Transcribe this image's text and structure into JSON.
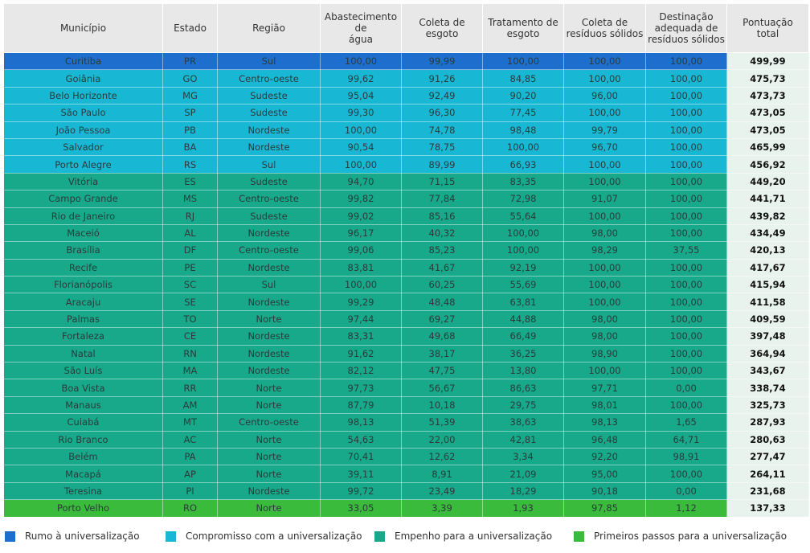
{
  "table": {
    "header": [
      "Município",
      "Estado",
      "Região",
      "Abastecimento\nde\nágua",
      "Coleta de\nesgoto",
      "Tratamento de\nesgoto",
      "Coleta de\nresíduos sólidos",
      "Destinação\nadequada de\nresíduos sólidos",
      "Pontuação\ntotal"
    ],
    "groups": [
      {
        "label": "Rumo à universalização",
        "color": "#1e6fcd",
        "rows": [
          [
            "Curitiba",
            "PR",
            "Sul",
            "100,00",
            "99,99",
            "100,00",
            "100,00",
            "100,00",
            "499,99"
          ]
        ]
      },
      {
        "label": "Compromisso com a universalização",
        "color": "#18b8d4",
        "rows": [
          [
            "Goiânia",
            "GO",
            "Centro-oeste",
            "99,62",
            "91,26",
            "84,85",
            "100,00",
            "100,00",
            "475,73"
          ],
          [
            "Belo Horizonte",
            "MG",
            "Sudeste",
            "95,04",
            "92,49",
            "90,20",
            "96,00",
            "100,00",
            "473,73"
          ],
          [
            "São Paulo",
            "SP",
            "Sudeste",
            "99,30",
            "96,30",
            "77,45",
            "100,00",
            "100,00",
            "473,05"
          ],
          [
            "João Pessoa",
            "PB",
            "Nordeste",
            "100,00",
            "74,78",
            "98,48",
            "99,79",
            "100,00",
            "473,05"
          ],
          [
            "Salvador",
            "BA",
            "Nordeste",
            "90,54",
            "78,75",
            "100,00",
            "96,70",
            "100,00",
            "465,99"
          ],
          [
            "Porto Alegre",
            "RS",
            "Sul",
            "100,00",
            "89,99",
            "66,93",
            "100,00",
            "100,00",
            "456,92"
          ]
        ]
      },
      {
        "label": "Empenho para a universalização",
        "color": "#17a98a",
        "rows": [
          [
            "Vitória",
            "ES",
            "Sudeste",
            "94,70",
            "71,15",
            "83,35",
            "100,00",
            "100,00",
            "449,20"
          ],
          [
            "Campo Grande",
            "MS",
            "Centro-oeste",
            "99,82",
            "77,84",
            "72,98",
            "91,07",
            "100,00",
            "441,71"
          ],
          [
            "Rio de Janeiro",
            "RJ",
            "Sudeste",
            "99,02",
            "85,16",
            "55,64",
            "100,00",
            "100,00",
            "439,82"
          ],
          [
            "Maceió",
            "AL",
            "Nordeste",
            "96,17",
            "40,32",
            "100,00",
            "98,00",
            "100,00",
            "434,49"
          ],
          [
            "Brasília",
            "DF",
            "Centro-oeste",
            "99,06",
            "85,23",
            "100,00",
            "98,29",
            "37,55",
            "420,13"
          ],
          [
            "Recife",
            "PE",
            "Nordeste",
            "83,81",
            "41,67",
            "92,19",
            "100,00",
            "100,00",
            "417,67"
          ],
          [
            "Florianópolis",
            "SC",
            "Sul",
            "100,00",
            "60,25",
            "55,69",
            "100,00",
            "100,00",
            "415,94"
          ],
          [
            "Aracaju",
            "SE",
            "Nordeste",
            "99,29",
            "48,48",
            "63,81",
            "100,00",
            "100,00",
            "411,58"
          ],
          [
            "Palmas",
            "TO",
            "Norte",
            "97,44",
            "69,27",
            "44,88",
            "98,00",
            "100,00",
            "409,59"
          ],
          [
            "Fortaleza",
            "CE",
            "Nordeste",
            "83,31",
            "49,68",
            "66,49",
            "98,00",
            "100,00",
            "397,48"
          ],
          [
            "Natal",
            "RN",
            "Nordeste",
            "91,62",
            "38,17",
            "36,25",
            "98,90",
            "100,00",
            "364,94"
          ],
          [
            "São Luís",
            "MA",
            "Nordeste",
            "82,12",
            "47,75",
            "13,80",
            "100,00",
            "100,00",
            "343,67"
          ],
          [
            "Boa Vista",
            "RR",
            "Norte",
            "97,73",
            "56,67",
            "86,63",
            "97,71",
            "0,00",
            "338,74"
          ],
          [
            "Manaus",
            "AM",
            "Norte",
            "87,79",
            "10,18",
            "29,75",
            "98,01",
            "100,00",
            "325,73"
          ],
          [
            "Cuiabá",
            "MT",
            "Centro-oeste",
            "98,13",
            "51,39",
            "38,63",
            "98,13",
            "1,65",
            "287,93"
          ],
          [
            "Rio Branco",
            "AC",
            "Norte",
            "54,63",
            "22,00",
            "42,81",
            "96,48",
            "64,71",
            "280,63"
          ],
          [
            "Belém",
            "PA",
            "Norte",
            "70,41",
            "12,62",
            "3,34",
            "92,20",
            "98,91",
            "277,47"
          ],
          [
            "Macapá",
            "AP",
            "Norte",
            "39,11",
            "8,91",
            "21,09",
            "95,00",
            "100,00",
            "264,11"
          ],
          [
            "Teresina",
            "PI",
            "Nordeste",
            "99,72",
            "23,49",
            "18,29",
            "90,18",
            "0,00",
            "231,68"
          ]
        ]
      },
      {
        "label": "Primeiros passos para a universalização",
        "color": "#3bbb3b",
        "rows": [
          [
            "Porto Velho",
            "RO",
            "Norte",
            "33,05",
            "3,39",
            "1,93",
            "97,85",
            "1,12",
            "137,33"
          ]
        ]
      }
    ]
  }
}
